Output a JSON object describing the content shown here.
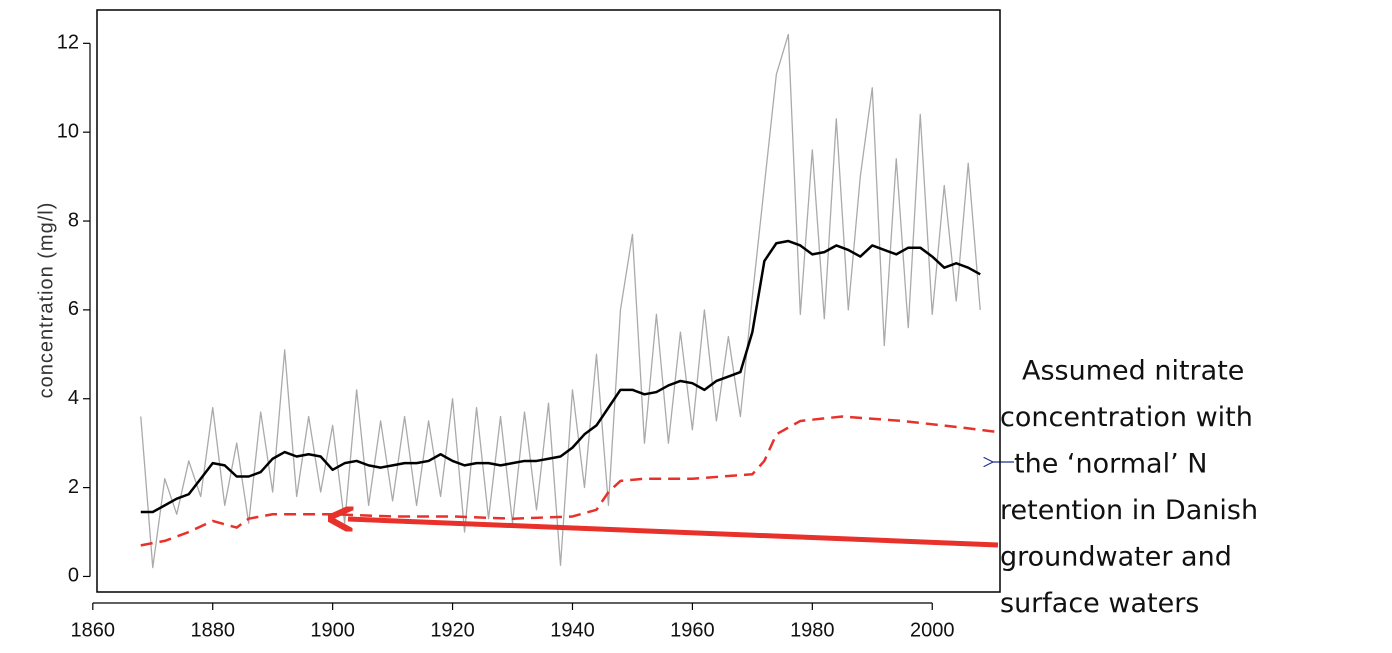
{
  "chart_data": {
    "type": "line",
    "ylabel": "concentration (mg/l)",
    "xlim": [
      1860.7,
      2011.3
    ],
    "ylim": [
      -0.35,
      12.75
    ],
    "xticks": [
      1860,
      1880,
      1900,
      1920,
      1940,
      1960,
      1980,
      2000
    ],
    "yticks": [
      0,
      2,
      4,
      6,
      8,
      10,
      12
    ],
    "series": [
      {
        "color": "#aaaaaa",
        "style": "solid",
        "x": [
          1868,
          1870,
          1872,
          1874,
          1876,
          1878,
          1880,
          1882,
          1884,
          1886,
          1888,
          1890,
          1892,
          1894,
          1896,
          1898,
          1900,
          1902,
          1904,
          1906,
          1908,
          1910,
          1912,
          1914,
          1916,
          1918,
          1920,
          1922,
          1924,
          1926,
          1928,
          1930,
          1932,
          1934,
          1936,
          1938,
          1940,
          1942,
          1944,
          1946,
          1948,
          1950,
          1952,
          1954,
          1956,
          1958,
          1960,
          1962,
          1964,
          1966,
          1968,
          1970,
          1972,
          1974,
          1976,
          1978,
          1980,
          1982,
          1984,
          1986,
          1988,
          1990,
          1992,
          1994,
          1996,
          1998,
          2000,
          2002,
          2004,
          2006,
          2008
        ],
        "values": [
          3.6,
          0.2,
          2.2,
          1.4,
          2.6,
          1.8,
          3.8,
          1.6,
          3.0,
          1.2,
          3.7,
          1.9,
          5.1,
          1.8,
          3.6,
          1.9,
          3.4,
          1.2,
          4.2,
          1.6,
          3.5,
          1.7,
          3.6,
          1.6,
          3.5,
          1.8,
          4.0,
          1.0,
          3.8,
          1.3,
          3.6,
          1.2,
          3.7,
          1.5,
          3.9,
          0.25,
          4.2,
          2.0,
          5.0,
          1.6,
          6.0,
          7.7,
          3.0,
          5.9,
          3.0,
          5.5,
          3.3,
          6.0,
          3.5,
          5.4,
          3.6,
          6.3,
          8.8,
          11.3,
          12.2,
          5.9,
          9.6,
          5.8,
          10.3,
          6.0,
          9.0,
          11.0,
          5.2,
          9.4,
          5.6,
          10.4,
          5.9,
          8.8,
          6.2,
          9.3,
          6.0
        ]
      },
      {
        "color": "#000000",
        "style": "solid",
        "x": [
          1868,
          1870,
          1872,
          1874,
          1876,
          1878,
          1880,
          1882,
          1884,
          1886,
          1888,
          1890,
          1892,
          1894,
          1896,
          1898,
          1900,
          1902,
          1904,
          1906,
          1908,
          1910,
          1912,
          1914,
          1916,
          1918,
          1920,
          1922,
          1924,
          1926,
          1928,
          1930,
          1932,
          1934,
          1936,
          1938,
          1940,
          1942,
          1944,
          1946,
          1948,
          1950,
          1952,
          1954,
          1956,
          1958,
          1960,
          1962,
          1964,
          1966,
          1968,
          1970,
          1972,
          1974,
          1976,
          1978,
          1980,
          1982,
          1984,
          1986,
          1988,
          1990,
          1992,
          1994,
          1996,
          1998,
          2000,
          2002,
          2004,
          2006,
          2008
        ],
        "values": [
          1.45,
          1.45,
          1.6,
          1.75,
          1.85,
          2.2,
          2.55,
          2.5,
          2.25,
          2.25,
          2.35,
          2.65,
          2.8,
          2.7,
          2.75,
          2.7,
          2.4,
          2.55,
          2.6,
          2.5,
          2.45,
          2.5,
          2.55,
          2.55,
          2.6,
          2.75,
          2.6,
          2.5,
          2.55,
          2.55,
          2.5,
          2.55,
          2.6,
          2.6,
          2.65,
          2.7,
          2.9,
          3.2,
          3.4,
          3.8,
          4.2,
          4.2,
          4.1,
          4.15,
          4.3,
          4.4,
          4.35,
          4.2,
          4.4,
          4.5,
          4.6,
          5.5,
          7.1,
          7.5,
          7.55,
          7.45,
          7.25,
          7.3,
          7.45,
          7.35,
          7.2,
          7.45,
          7.35,
          7.25,
          7.4,
          7.4,
          7.2,
          6.95,
          7.05,
          6.95,
          6.8
        ]
      },
      {
        "color": "#e8312a",
        "style": "dashed",
        "x": [
          1868,
          1872,
          1876,
          1880,
          1884,
          1886,
          1890,
          1900,
          1910,
          1920,
          1930,
          1940,
          1944,
          1946,
          1948,
          1952,
          1960,
          1970,
          1972,
          1974,
          1978,
          1985,
          1995,
          2005,
          2011
        ],
        "values": [
          0.7,
          0.8,
          1.0,
          1.25,
          1.1,
          1.3,
          1.4,
          1.4,
          1.35,
          1.35,
          1.3,
          1.35,
          1.5,
          1.9,
          2.15,
          2.2,
          2.2,
          2.3,
          2.6,
          3.2,
          3.5,
          3.6,
          3.5,
          3.35,
          3.25
        ]
      }
    ],
    "annotation": [
      "Assumed nitrate",
      "concentration with",
      "the ‘normal’ N",
      "retention in Danish",
      "groundwater and",
      "surface waters"
    ]
  }
}
